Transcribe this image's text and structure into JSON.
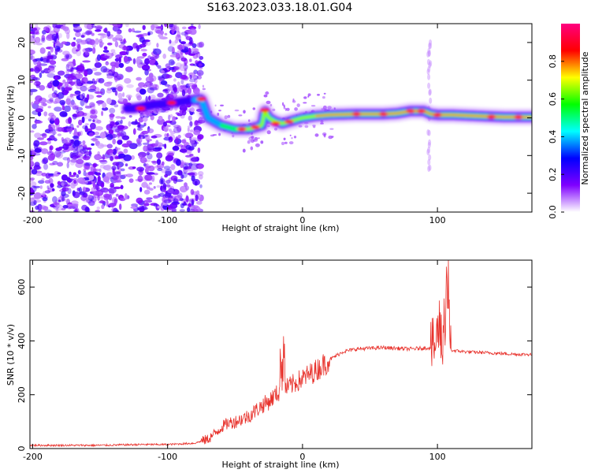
{
  "figure_title": "S163.2023.033.18.01.G04",
  "chart_data": [
    {
      "type": "heatmap",
      "title": "",
      "xlabel": "Height of straight line (km)",
      "ylabel": "Frequency (Hz)",
      "xlim": [
        -202,
        170
      ],
      "ylim": [
        -25,
        25
      ],
      "xticks": [
        -200,
        -100,
        0,
        100
      ],
      "yticks": [
        -20,
        -10,
        0,
        10,
        20
      ],
      "colorbar": {
        "label": "Normalized spectral amplitude",
        "range": [
          0,
          1
        ],
        "ticks": [
          0.0,
          0.2,
          0.4,
          0.6,
          0.8
        ],
        "colors": [
          "#ffffff",
          "#7f00ff",
          "#0000ff",
          "#00ffff",
          "#00ff00",
          "#ffff00",
          "#ff0000",
          "#ff0080"
        ]
      },
      "ridge": {
        "x": [
          -125,
          -110,
          -95,
          -85,
          -75,
          -70,
          -65,
          -60,
          -55,
          -50,
          -45,
          -40,
          -35,
          -30,
          -28,
          -25,
          -20,
          -15,
          -10,
          -5,
          0,
          10,
          20,
          40,
          60,
          70,
          80,
          90,
          95,
          100,
          110,
          130,
          150,
          170
        ],
        "y": [
          2.5,
          3.5,
          4,
          4.5,
          5,
          0,
          -1,
          -2,
          -2.5,
          -3,
          -3,
          -3,
          -2.5,
          -2,
          2,
          0,
          -1,
          -1.5,
          -1,
          -0.5,
          0,
          0.5,
          0.8,
          1,
          1,
          1.2,
          1.8,
          1.8,
          1,
          0.8,
          0.8,
          0.5,
          0.2,
          0.2
        ]
      }
    },
    {
      "type": "line",
      "title": "",
      "xlabel": "Height of straight line (km)",
      "ylabel": "SNR (10 * v/v)",
      "xlim": [
        -202,
        170
      ],
      "ylim": [
        0,
        700
      ],
      "xticks": [
        -200,
        -100,
        0,
        100
      ],
      "yticks": [
        0,
        200,
        400,
        600
      ],
      "series": [
        {
          "color": "#e8322c",
          "x": [
            -202,
            -150,
            -120,
            -100,
            -80,
            -70,
            -65,
            -60,
            -55,
            -50,
            -45,
            -40,
            -35,
            -30,
            -25,
            -20,
            -15,
            -10,
            0,
            10,
            20,
            30,
            40,
            60,
            80,
            95,
            98,
            100,
            102,
            104,
            106,
            108,
            110,
            120,
            140,
            160,
            170
          ],
          "y": [
            12,
            12,
            15,
            15,
            20,
            35,
            55,
            80,
            95,
            100,
            110,
            120,
            140,
            160,
            175,
            200,
            215,
            230,
            260,
            290,
            330,
            360,
            370,
            375,
            370,
            375,
            380,
            420,
            520,
            380,
            460,
            560,
            365,
            360,
            355,
            350,
            350
          ]
        }
      ]
    }
  ]
}
